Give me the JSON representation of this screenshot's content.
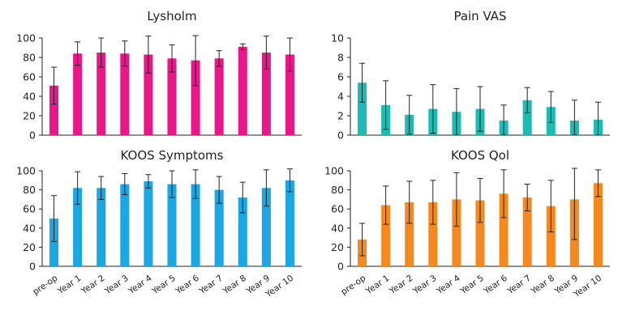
{
  "categories": [
    "pre-op",
    "Year 1",
    "Year 2",
    "Year 3",
    "Year 4",
    "Year 5",
    "Year 6",
    "Year 7",
    "Year 8",
    "Year 9",
    "Year 10"
  ],
  "chart_data": [
    {
      "type": "bar",
      "title": "Lysholm",
      "color": "#e8178a",
      "ylim": [
        0,
        100
      ],
      "yticks": [
        "0",
        "20",
        "40",
        "60",
        "80",
        "100"
      ],
      "categories": [
        "pre-op",
        "Year 1",
        "Year 2",
        "Year 3",
        "Year 4",
        "Year 5",
        "Year 6",
        "Year 7",
        "Year 8",
        "Year 9",
        "Year 10"
      ],
      "values": [
        51,
        84,
        85,
        84,
        83,
        79,
        77,
        79,
        91,
        85,
        83
      ],
      "errors": [
        19,
        12,
        15,
        13,
        19,
        14,
        26,
        8,
        3,
        17,
        17
      ]
    },
    {
      "type": "bar",
      "title": "Pain VAS",
      "color": "#1bbcb3",
      "ylim": [
        0,
        10
      ],
      "yticks": [
        "0",
        "2",
        "4",
        "6",
        "8",
        "10"
      ],
      "categories": [
        "pre-op",
        "Year 1",
        "Year 2",
        "Year 3",
        "Year 4",
        "Year 5",
        "Year 6",
        "Year 7",
        "Year 8",
        "Year 9",
        "Year 10"
      ],
      "values": [
        5.4,
        3.1,
        2.1,
        2.7,
        2.4,
        2.7,
        1.5,
        3.6,
        2.9,
        1.5,
        1.6
      ],
      "errors": [
        2.0,
        2.5,
        2.0,
        2.5,
        2.4,
        2.3,
        1.6,
        1.3,
        1.6,
        2.1,
        1.8
      ]
    },
    {
      "type": "bar",
      "title": "KOOS Symptoms",
      "color": "#1ba7e3",
      "ylim": [
        0,
        100
      ],
      "yticks": [
        "0",
        "20",
        "40",
        "60",
        "80",
        "100"
      ],
      "categories": [
        "pre-op",
        "Year 1",
        "Year 2",
        "Year 3",
        "Year 4",
        "Year 5",
        "Year 6",
        "Year 7",
        "Year 8",
        "Year 9",
        "Year 10"
      ],
      "values": [
        50,
        82,
        82,
        86,
        89,
        86,
        86,
        80,
        72,
        82,
        90
      ],
      "errors": [
        24,
        17,
        12,
        11,
        7,
        14,
        15,
        14,
        16,
        19,
        12
      ]
    },
    {
      "type": "bar",
      "title": "KOOS Qol",
      "color": "#f5891f",
      "ylim": [
        0,
        100
      ],
      "yticks": [
        "0",
        "20",
        "40",
        "60",
        "80",
        "100"
      ],
      "categories": [
        "pre-op",
        "Year 1",
        "Year 2",
        "Year 3",
        "Year 4",
        "Year 5",
        "Year 6",
        "Year 7",
        "Year 8",
        "Year 9",
        "Year 10"
      ],
      "values": [
        28,
        64,
        67,
        67,
        70,
        69,
        76,
        72,
        63,
        70,
        87
      ],
      "errors": [
        17,
        20,
        22,
        23,
        28,
        23,
        25,
        14,
        27,
        42,
        14
      ]
    }
  ]
}
